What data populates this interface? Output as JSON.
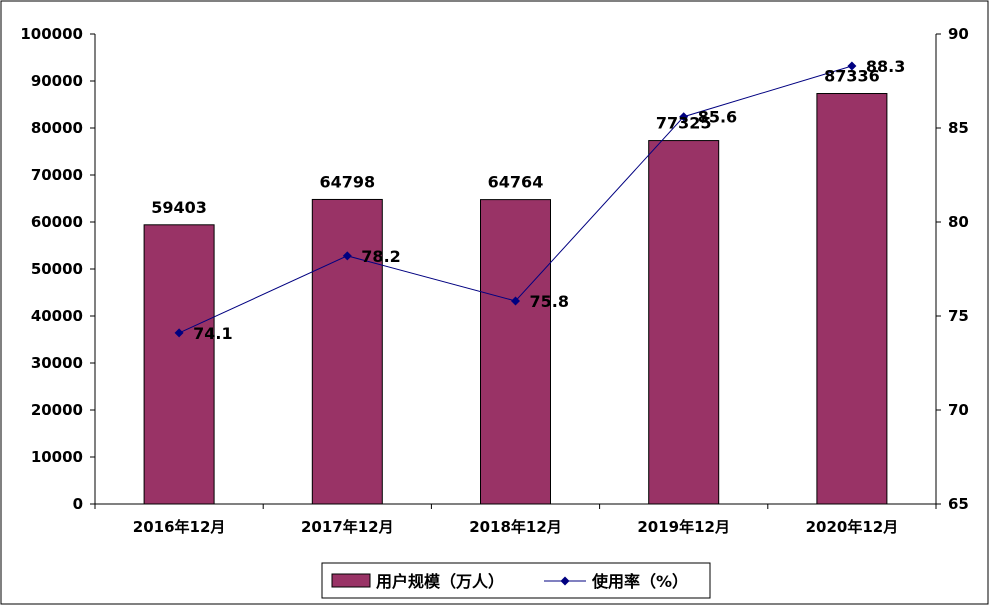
{
  "chart_data": {
    "type": "bar",
    "categories": [
      "2016年12月",
      "2017年12月",
      "2018年12月",
      "2019年12月",
      "2020年12月"
    ],
    "series": [
      {
        "name": "用户规模（万人）",
        "type": "bar",
        "axis": "left",
        "values": [
          59403,
          64798,
          64764,
          77325,
          87336
        ],
        "labels": [
          "59403",
          "64798",
          "64764",
          "77325",
          "87336"
        ]
      },
      {
        "name": "使用率（%）",
        "type": "line",
        "axis": "right",
        "values": [
          74.1,
          78.2,
          75.8,
          85.6,
          88.3
        ],
        "labels": [
          "74.1",
          "78.2",
          "75.8",
          "85.6",
          "88.3"
        ]
      }
    ],
    "y_left": {
      "ylim": [
        0,
        100000
      ],
      "ticks": [
        0,
        10000,
        20000,
        30000,
        40000,
        50000,
        60000,
        70000,
        80000,
        90000,
        100000
      ]
    },
    "y_right": {
      "ylim": [
        65,
        90
      ],
      "ticks": [
        65,
        70,
        75,
        80,
        85,
        90
      ]
    },
    "grid": false,
    "legend": "bottom",
    "colors": {
      "bar": "#993366",
      "line": "#000080",
      "marker": "#000080",
      "axis": "#000000"
    }
  }
}
